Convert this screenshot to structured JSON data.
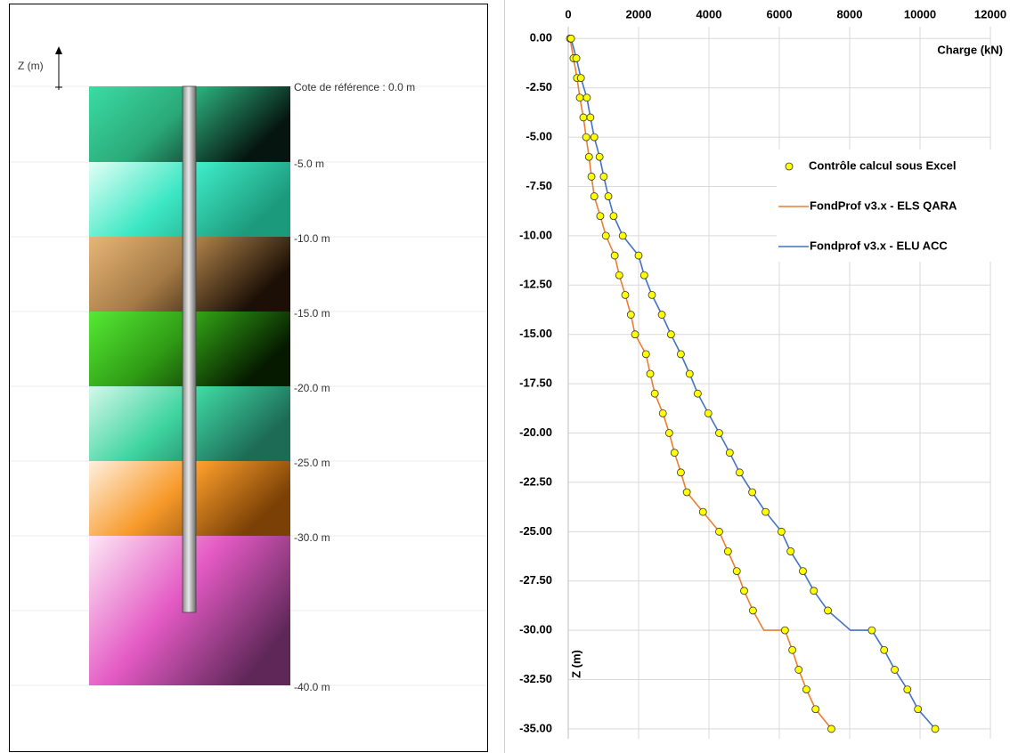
{
  "diagram": {
    "axis_label": "Z (m)",
    "levels": [
      "Cote de référence : 0.0 m",
      "-5.0 m",
      "-10.0 m",
      "-15.0 m",
      "-20.0 m",
      "-25.0 m",
      "-30.0 m",
      "-40.0 m"
    ]
  },
  "chart_data": {
    "type": "line",
    "x_label": "Charge (kN)",
    "y_label": "Z (m)",
    "y": [
      0,
      -1,
      -2,
      -3,
      -4,
      -5,
      -6,
      -7,
      -8,
      -9,
      -10,
      -11,
      -12,
      -13,
      -14,
      -15,
      -16,
      -17,
      -18,
      -19,
      -20,
      -21,
      -22,
      -23,
      -24,
      -25,
      -26,
      -27,
      -28,
      -29,
      -30,
      -30,
      -31,
      -32,
      -33,
      -34,
      -35
    ],
    "series": [
      {
        "name": "Contrôle calcul sous Excel",
        "color": "#ffff00",
        "style": "marker",
        "values": [
          [
            50,
            150,
            250,
            330,
            430,
            510,
            590,
            660,
            740,
            910,
            1070,
            1320,
            1450,
            1620,
            1780,
            1900,
            2210,
            2330,
            2460,
            2690,
            2870,
            3020,
            3200,
            3370,
            3830,
            4290,
            4540,
            4790,
            5000,
            5250,
            null,
            6160,
            6370,
            6550,
            6770,
            7030,
            7480
          ],
          [
            80,
            230,
            360,
            530,
            630,
            740,
            890,
            1010,
            1140,
            1290,
            1550,
            2000,
            2160,
            2380,
            2660,
            2920,
            3200,
            3450,
            3680,
            3980,
            4290,
            4590,
            4870,
            5230,
            5610,
            6060,
            6320,
            6670,
            6980,
            7380,
            null,
            8630,
            8980,
            9280,
            9640,
            9940,
            10430
          ]
        ]
      },
      {
        "name": "FondProf v3.x - ELS QARA",
        "color": "#ed7d31",
        "style": "line",
        "values": [
          50,
          150,
          250,
          330,
          430,
          510,
          590,
          660,
          740,
          910,
          1070,
          1320,
          1450,
          1620,
          1780,
          1900,
          2210,
          2330,
          2460,
          2690,
          2870,
          3020,
          3200,
          3370,
          3830,
          4290,
          4540,
          4790,
          5000,
          5250,
          5560,
          6160,
          6370,
          6550,
          6770,
          7030,
          7480
        ]
      },
      {
        "name": "Fondprof v3.x - ELU ACC",
        "color": "#4472c4",
        "style": "line",
        "values": [
          80,
          230,
          360,
          530,
          630,
          740,
          890,
          1010,
          1140,
          1290,
          1550,
          2000,
          2160,
          2380,
          2660,
          2920,
          3200,
          3450,
          3680,
          3980,
          4290,
          4590,
          4870,
          5230,
          5610,
          6060,
          6320,
          6670,
          6980,
          7380,
          8020,
          8630,
          8980,
          9280,
          9640,
          9940,
          10430
        ]
      }
    ],
    "xlim": [
      0,
      12000
    ],
    "xticks": [
      0,
      2000,
      4000,
      6000,
      8000,
      10000,
      12000
    ],
    "ylim": [
      -35.5,
      0.6
    ],
    "yticks": [
      {
        "value": 0,
        "label": "0.00"
      },
      {
        "value": -2.5,
        "label": "-2.50"
      },
      {
        "value": -5,
        "label": "-5.00"
      },
      {
        "value": -7.5,
        "label": "-7.50"
      },
      {
        "value": -10,
        "label": "-10.00"
      },
      {
        "value": -12.5,
        "label": "-12.50"
      },
      {
        "value": -15,
        "label": "-15.00"
      },
      {
        "value": -17.5,
        "label": "-17.50"
      },
      {
        "value": -20,
        "label": "-20.00"
      },
      {
        "value": -22.5,
        "label": "-22.50"
      },
      {
        "value": -25,
        "label": "-25.00"
      },
      {
        "value": -27.5,
        "label": "-27.50"
      },
      {
        "value": -30,
        "label": "-30.00"
      },
      {
        "value": -32.5,
        "label": "-32.50"
      },
      {
        "value": -35,
        "label": "-35.00"
      }
    ],
    "grid": true,
    "legend": "right"
  }
}
